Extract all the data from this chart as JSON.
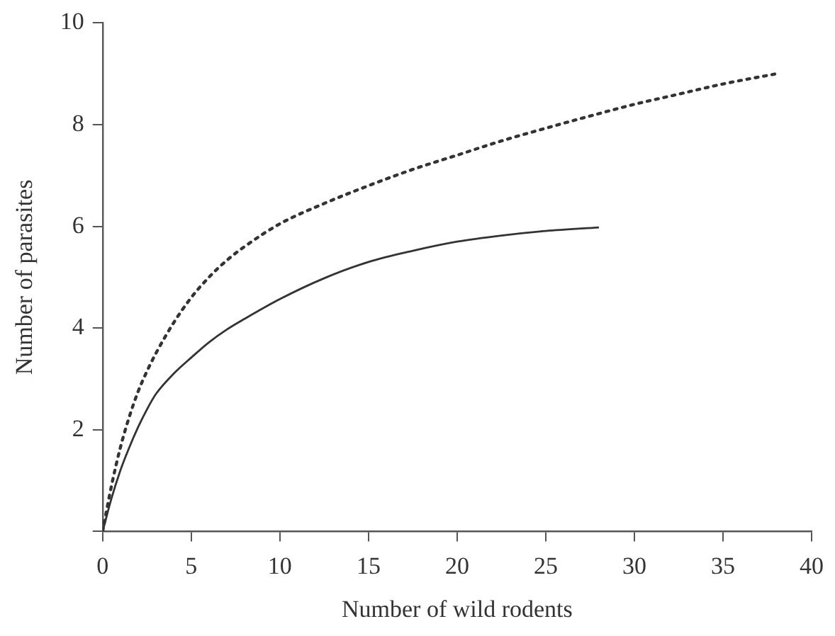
{
  "chart_data": {
    "type": "line",
    "xlabel": "Number of wild rodents",
    "ylabel": "Number of parasites",
    "xlim": [
      0,
      40
    ],
    "xticks": [
      0,
      5,
      10,
      15,
      20,
      25,
      30,
      35,
      40
    ],
    "ylim": [
      0,
      10
    ],
    "yticks": [
      {
        "value": 0,
        "label": null
      },
      2,
      4,
      6,
      8,
      10
    ],
    "grid": false,
    "legend": false,
    "marker": "none",
    "series": [
      {
        "color": "#333333",
        "line_style": "dotted",
        "x": [
          0,
          0.5,
          1,
          1.5,
          2,
          2.5,
          3,
          4,
          5,
          6,
          7,
          8,
          10,
          12.5,
          15,
          17.5,
          20,
          22.5,
          25,
          27.5,
          30,
          32.5,
          35,
          38
        ],
        "values": [
          0,
          0.9,
          1.65,
          2.25,
          2.75,
          3.15,
          3.5,
          4.1,
          4.6,
          5.0,
          5.33,
          5.6,
          6.05,
          6.45,
          6.8,
          7.12,
          7.4,
          7.68,
          7.93,
          8.17,
          8.4,
          8.6,
          8.8,
          9.0
        ]
      },
      {
        "color": "#333333",
        "line_style": "solid",
        "x": [
          0,
          0.5,
          1,
          1.5,
          2,
          2.5,
          3,
          4,
          5,
          6,
          7,
          8,
          10,
          12.5,
          15,
          17.5,
          20,
          22.5,
          25,
          28
        ],
        "values": [
          0,
          0.65,
          1.2,
          1.65,
          2.05,
          2.4,
          2.7,
          3.1,
          3.42,
          3.72,
          3.97,
          4.18,
          4.57,
          4.98,
          5.3,
          5.52,
          5.7,
          5.82,
          5.91,
          5.98
        ]
      }
    ]
  }
}
